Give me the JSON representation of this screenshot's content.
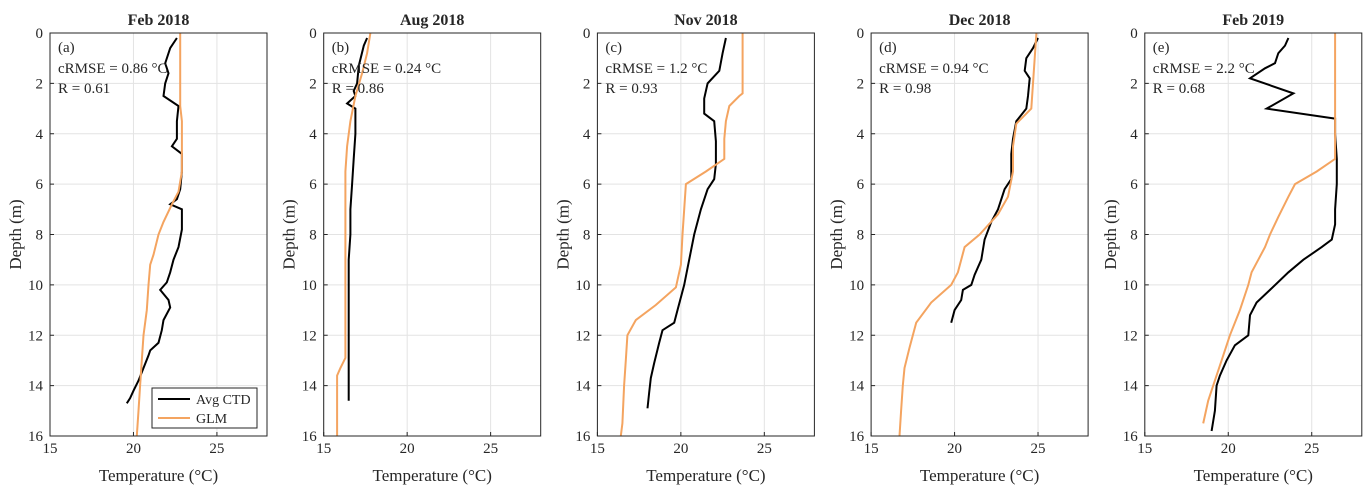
{
  "chart_data": [
    {
      "type": "line",
      "title": "Feb 2018",
      "panel_label": "(a)",
      "annotations": [
        "cRMSE = 0.86 °C",
        "R = 0.61"
      ],
      "xlabel": "Temperature (°C)",
      "ylabel": "Depth (m)",
      "xlim": [
        15,
        28
      ],
      "ylim": [
        0,
        16
      ],
      "yreverse": true,
      "xticks": [
        15,
        20,
        25
      ],
      "yticks": [
        0,
        2,
        4,
        6,
        8,
        10,
        12,
        14,
        16
      ],
      "grid": true,
      "legend": "lower right",
      "series": [
        {
          "name": "Avg CTD",
          "color": "#000000",
          "x": [
            22.6,
            22.2,
            21.9,
            22.1,
            21.9,
            21.8,
            22.7,
            22.6,
            22.6,
            22.3,
            22.9,
            22.9,
            22.8,
            22.6,
            22.2,
            22.9,
            22.9,
            22.7,
            22.4,
            22.2,
            22.0,
            21.6,
            22.1,
            22.2,
            21.8,
            21.7,
            21.5,
            21.0,
            20.9,
            20.6,
            20.3,
            20.0,
            19.8,
            19.6
          ],
          "y": [
            0.2,
            0.6,
            1.2,
            1.6,
            2.0,
            2.5,
            2.9,
            3.5,
            4.2,
            4.5,
            4.8,
            5.5,
            6.2,
            6.6,
            6.8,
            7.0,
            7.8,
            8.5,
            9.0,
            9.5,
            9.9,
            10.2,
            10.6,
            10.9,
            11.4,
            11.8,
            12.3,
            12.6,
            12.8,
            13.3,
            13.8,
            14.2,
            14.5,
            14.7
          ]
        },
        {
          "name": "GLM",
          "color": "#f4a460",
          "x": [
            22.8,
            22.8,
            22.8,
            22.8,
            22.9,
            22.9,
            22.9,
            22.7,
            22.3,
            21.8,
            21.5,
            21.2,
            21.0,
            20.9,
            20.8,
            20.6,
            20.5,
            20.4,
            20.3,
            20.2
          ],
          "y": [
            0,
            1,
            2,
            2.9,
            3.5,
            4.5,
            5.5,
            6.3,
            6.8,
            7.5,
            8.0,
            8.8,
            9.2,
            10,
            11,
            12,
            13,
            14,
            15,
            16
          ]
        }
      ]
    },
    {
      "type": "line",
      "title": "Aug 2018",
      "panel_label": "(b)",
      "annotations": [
        "cRMSE = 0.24 °C",
        "R = 0.86"
      ],
      "xlabel": "Temperature (°C)",
      "ylabel": "Depth (m)",
      "xlim": [
        15,
        28
      ],
      "ylim": [
        0,
        16
      ],
      "yreverse": true,
      "xticks": [
        15,
        20,
        25
      ],
      "yticks": [
        0,
        2,
        4,
        6,
        8,
        10,
        12,
        14,
        16
      ],
      "grid": true,
      "series": [
        {
          "color": "#000000",
          "x": [
            17.6,
            17.4,
            17.1,
            17.0,
            16.8,
            16.9,
            16.4,
            16.9,
            16.9,
            16.8,
            16.7,
            16.6,
            16.6,
            16.5,
            16.5,
            16.5,
            16.5,
            16.5,
            16.5,
            16.5
          ],
          "y": [
            0.2,
            0.5,
            1.3,
            2.0,
            2.3,
            2.5,
            2.8,
            3.0,
            4,
            5,
            6,
            7,
            8,
            9,
            10,
            11,
            12,
            13,
            14,
            14.6
          ]
        },
        {
          "color": "#f4a460",
          "x": [
            17.8,
            17.6,
            17.3,
            16.9,
            16.6,
            16.4,
            16.3,
            16.3,
            16.3,
            16.3,
            16.3,
            16.0,
            15.8,
            15.8
          ],
          "y": [
            0,
            0.8,
            1.6,
            2.5,
            3.5,
            4.5,
            5.5,
            7,
            9,
            11,
            12.9,
            13.3,
            13.6,
            16
          ]
        }
      ]
    },
    {
      "type": "line",
      "title": "Nov 2018",
      "panel_label": "(c)",
      "annotations": [
        "cRMSE = 1.2 °C",
        "R = 0.93"
      ],
      "xlabel": "Temperature (°C)",
      "ylabel": "Depth (m)",
      "xlim": [
        15,
        28
      ],
      "ylim": [
        0,
        16
      ],
      "yreverse": true,
      "xticks": [
        15,
        20,
        25
      ],
      "yticks": [
        0,
        2,
        4,
        6,
        8,
        10,
        12,
        14,
        16
      ],
      "grid": true,
      "series": [
        {
          "color": "#000000",
          "x": [
            22.7,
            22.5,
            22.3,
            21.6,
            21.4,
            21.4,
            22.0,
            22.1,
            22.1,
            22.0,
            21.6,
            21.2,
            20.8,
            20.5,
            20.2,
            19.8,
            19.6,
            18.9,
            18.7,
            18.4,
            18.2,
            18.1,
            18.0
          ],
          "y": [
            0.2,
            0.8,
            1.5,
            2.0,
            2.6,
            3.2,
            3.5,
            4.3,
            5.2,
            5.8,
            6.2,
            7,
            8,
            9,
            10,
            11,
            11.5,
            11.8,
            12.3,
            13.1,
            13.7,
            14.3,
            14.9
          ]
        },
        {
          "color": "#f4a460",
          "x": [
            23.7,
            23.7,
            23.7,
            23.5,
            22.9,
            22.7,
            22.6,
            22.6,
            21.5,
            20.3,
            20.2,
            20.1,
            20.0,
            19.7,
            18.5,
            17.3,
            16.8,
            16.7,
            16.6,
            16.5,
            16.4
          ],
          "y": [
            0,
            1,
            2.4,
            2.5,
            2.9,
            3.5,
            4.2,
            5,
            5.5,
            6,
            7,
            8,
            9.2,
            10.1,
            10.8,
            11.4,
            12,
            13,
            14,
            15.5,
            16
          ]
        }
      ]
    },
    {
      "type": "line",
      "title": "Dec 2018",
      "panel_label": "(d)",
      "annotations": [
        "cRMSE = 0.94 °C",
        "R = 0.98"
      ],
      "xlabel": "Temperature (°C)",
      "ylabel": "Depth (m)",
      "xlim": [
        15,
        28
      ],
      "ylim": [
        0,
        16
      ],
      "yreverse": true,
      "xticks": [
        15,
        20,
        25
      ],
      "yticks": [
        0,
        2,
        4,
        6,
        8,
        10,
        12,
        14,
        16
      ],
      "grid": true,
      "series": [
        {
          "color": "#000000",
          "x": [
            25.0,
            24.7,
            24.3,
            24.2,
            24.5,
            24.4,
            24.3,
            23.7,
            23.5,
            23.4,
            23.4,
            23.0,
            22.6,
            22.2,
            21.8,
            21.6,
            21.2,
            21.0,
            20.5,
            20.4,
            20.0,
            19.8
          ],
          "y": [
            0.2,
            0.6,
            1.0,
            1.5,
            1.8,
            2.5,
            3,
            3.5,
            4.2,
            4.8,
            5.8,
            6.2,
            7,
            7.5,
            8.2,
            9,
            9.6,
            10,
            10.2,
            10.6,
            11,
            11.5
          ]
        },
        {
          "color": "#f4a460",
          "x": [
            24.9,
            24.8,
            24.7,
            24.6,
            23.7,
            23.5,
            23.5,
            23.2,
            22.6,
            21.5,
            20.6,
            20.2,
            19.8,
            18.6,
            17.7,
            17.3,
            17.0,
            16.9,
            16.8,
            16.7
          ],
          "y": [
            0,
            1,
            2,
            3,
            3.6,
            4.5,
            5.5,
            6.5,
            7.2,
            8,
            8.5,
            9.5,
            10,
            10.7,
            11.5,
            12.5,
            13.3,
            14,
            15,
            16
          ]
        }
      ]
    },
    {
      "type": "line",
      "title": "Feb 2019",
      "panel_label": "(e)",
      "annotations": [
        "cRMSE = 2.2 °C",
        "R = 0.68"
      ],
      "xlabel": "Temperature (°C)",
      "ylabel": "Depth (m)",
      "xlim": [
        15,
        28
      ],
      "ylim": [
        0,
        16
      ],
      "yreverse": true,
      "xticks": [
        15,
        20,
        25
      ],
      "yticks": [
        0,
        2,
        4,
        6,
        8,
        10,
        12,
        14,
        16
      ],
      "grid": true,
      "series": [
        {
          "color": "#000000",
          "x": [
            23.6,
            23.4,
            23.0,
            22.8,
            22.2,
            21.3,
            23.9,
            22.3,
            26.4,
            26.4,
            26.5,
            26.5,
            26.4,
            26.4,
            26.2,
            25.6,
            24.5,
            23.6,
            22.5,
            21.7,
            21.3,
            21.2,
            20.4,
            19.9,
            19.5,
            19.3,
            19.2,
            19.0
          ],
          "y": [
            0.2,
            0.5,
            0.8,
            1.2,
            1.4,
            1.8,
            2.4,
            3.0,
            3.4,
            4,
            5,
            6,
            7,
            7.6,
            8.2,
            8.5,
            9,
            9.5,
            10.2,
            10.7,
            11.2,
            12,
            12.4,
            13,
            13.6,
            14,
            15,
            15.8
          ]
        },
        {
          "color": "#f4a460",
          "x": [
            26.4,
            26.4,
            26.4,
            26.4,
            25.3,
            24.0,
            23.6,
            23.0,
            22.5,
            22.2,
            21.8,
            21.4,
            21.2,
            20.7,
            20.1,
            19.6,
            19.1,
            18.8,
            18.5
          ],
          "y": [
            0,
            2,
            4,
            5,
            5.5,
            6,
            6.5,
            7.3,
            8,
            8.5,
            9,
            9.5,
            10,
            11,
            12,
            13,
            14,
            14.6,
            15.5
          ]
        }
      ]
    }
  ]
}
